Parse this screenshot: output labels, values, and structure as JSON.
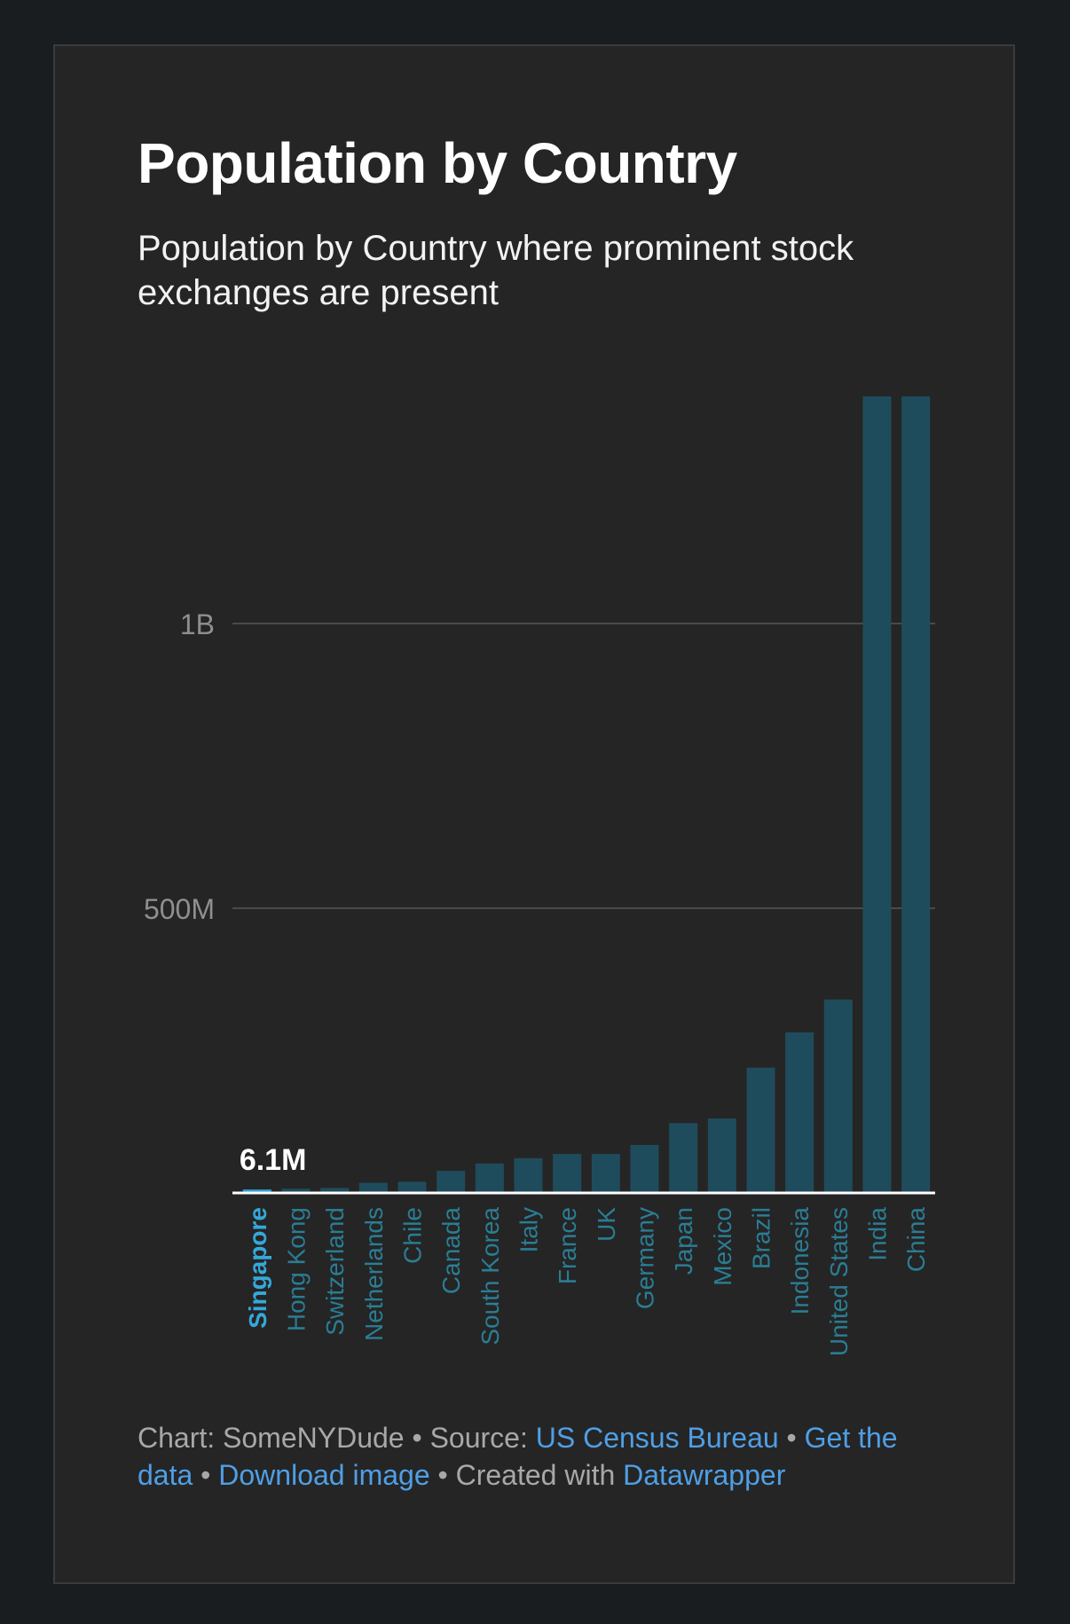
{
  "chart_data": {
    "type": "bar",
    "title": "Population by Country",
    "subtitle": "Population by Country where prominent stock exchanges are present",
    "xlabel": "",
    "ylabel": "",
    "ylim": [
      0,
      1400000000
    ],
    "y_ticks": [
      {
        "value": 500000000,
        "label": "500M"
      },
      {
        "value": 1000000000,
        "label": "1B"
      }
    ],
    "grid": true,
    "categories": [
      "Singapore",
      "Hong Kong",
      "Switzerland",
      "Netherlands",
      "Chile",
      "Canada",
      "South Korea",
      "Italy",
      "France",
      "UK",
      "Germany",
      "Japan",
      "Mexico",
      "Brazil",
      "Indonesia",
      "United States",
      "India",
      "China"
    ],
    "values": [
      6100000,
      7400000,
      8800000,
      17800000,
      19600000,
      38800000,
      51700000,
      61000000,
      68500000,
      68500000,
      84300000,
      122600000,
      130700000,
      220000000,
      282000000,
      339700000,
      1399000000,
      1399000000
    ],
    "highlight": {
      "category": "Singapore",
      "label": "6.1M"
    }
  },
  "footer": {
    "chart_label": "Chart: SomeNYDude",
    "sep1": " • ",
    "source_label": "Source: ",
    "source_link": "US Census Bureau",
    "sep2": " • ",
    "get_data_link": "Get the data",
    "sep3": " • ",
    "download_link": "Download image",
    "sep4": " • ",
    "created_label": "Created with ",
    "datawrapper_link": "Datawrapper"
  },
  "colors": {
    "bar": "#1f4c5c",
    "bar_highlight": "#2f9fd1",
    "label": "#2a7d94",
    "label_highlight": "#35a8da",
    "grid": "#4a4a4a",
    "baseline": "#ffffff",
    "tick_label": "#8f8f8f"
  }
}
